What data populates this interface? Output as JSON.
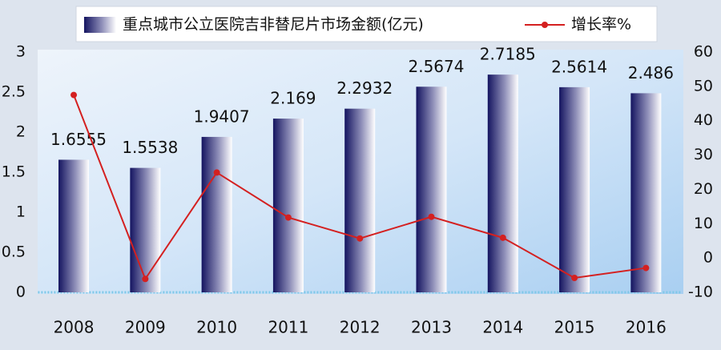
{
  "chart_data": {
    "type": "bar",
    "categories": [
      "2008",
      "2009",
      "2010",
      "2011",
      "2012",
      "2013",
      "2014",
      "2015",
      "2016"
    ],
    "series": [
      {
        "name": "重点城市公立医院吉非替尼片市场金额(亿元)",
        "type": "bar",
        "color": "#141460",
        "values": [
          1.6555,
          1.5538,
          1.9407,
          2.169,
          2.2932,
          2.5674,
          2.7185,
          2.5614,
          2.486
        ]
      },
      {
        "name": "增长率%",
        "type": "line",
        "axis": "y2",
        "color": "#d42020",
        "values": [
          47.5,
          -6.1,
          24.9,
          11.8,
          5.7,
          12.0,
          5.9,
          -5.8,
          -2.9
        ]
      }
    ],
    "ylim": [
      0,
      3
    ],
    "yticks": [
      0,
      0.5,
      1,
      1.5,
      2,
      2.5,
      3
    ],
    "y2lim": [
      -10,
      60
    ],
    "y2ticks": [
      -10,
      0,
      10,
      20,
      30,
      40,
      50,
      60
    ]
  }
}
